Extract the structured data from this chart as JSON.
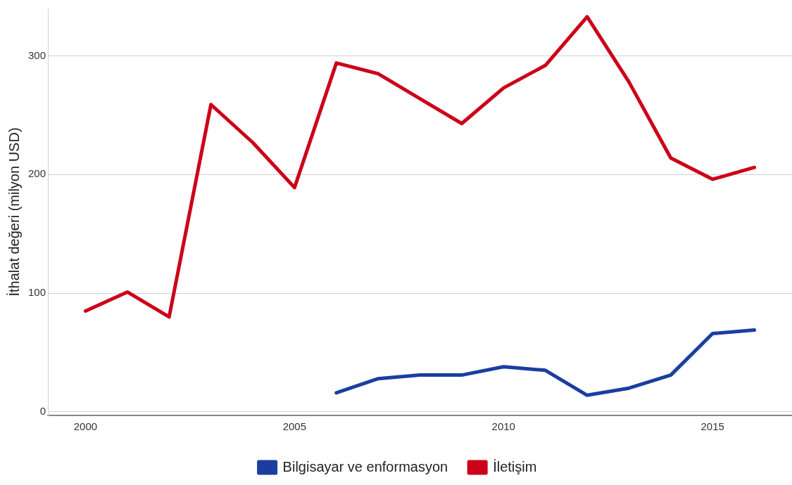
{
  "chart_data": {
    "type": "line",
    "ylabel": "İthalat değeri (milyon USD)",
    "x": [
      2000,
      2001,
      2002,
      2003,
      2004,
      2005,
      2006,
      2007,
      2008,
      2009,
      2010,
      2011,
      2012,
      2013,
      2014,
      2015,
      2016
    ],
    "series": [
      {
        "name": "Bilgisayar ve enformasyon",
        "color": "#1a3ea0",
        "values": [
          null,
          null,
          null,
          null,
          null,
          null,
          16,
          28,
          31,
          31,
          38,
          35,
          14,
          20,
          31,
          66,
          69
        ]
      },
      {
        "name": "İletişim",
        "color": "#cc0018",
        "values": [
          85,
          101,
          80,
          259,
          227,
          189,
          294,
          285,
          264,
          243,
          273,
          292,
          333,
          278,
          214,
          196,
          206
        ]
      }
    ],
    "xlim": [
      1999.1,
      2016.9
    ],
    "xticks": [
      2000,
      2005,
      2010,
      2015
    ],
    "ylim": [
      -3,
      340
    ],
    "yticks": [
      0,
      100,
      200,
      300
    ],
    "grid": "y",
    "legend": "bottom",
    "marker": "none",
    "line_style": "solid"
  }
}
